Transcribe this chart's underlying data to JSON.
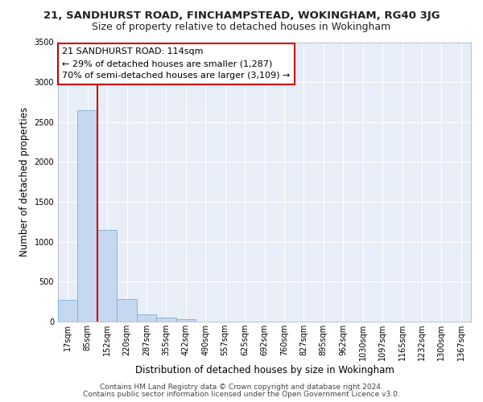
{
  "title_line1": "21, SANDHURST ROAD, FINCHAMPSTEAD, WOKINGHAM, RG40 3JG",
  "title_line2": "Size of property relative to detached houses in Wokingham",
  "xlabel": "Distribution of detached houses by size in Wokingham",
  "ylabel": "Number of detached properties",
  "bin_labels": [
    "17sqm",
    "85sqm",
    "152sqm",
    "220sqm",
    "287sqm",
    "355sqm",
    "422sqm",
    "490sqm",
    "557sqm",
    "625sqm",
    "692sqm",
    "760sqm",
    "827sqm",
    "895sqm",
    "962sqm",
    "1030sqm",
    "1097sqm",
    "1165sqm",
    "1232sqm",
    "1300sqm",
    "1367sqm"
  ],
  "bar_values": [
    270,
    2650,
    1150,
    280,
    90,
    50,
    30,
    0,
    0,
    0,
    0,
    0,
    0,
    0,
    0,
    0,
    0,
    0,
    0,
    0,
    0
  ],
  "bar_color": "#c5d8f0",
  "bar_edge_color": "#7aafd4",
  "vline_x": 1.5,
  "vline_color": "#cc0000",
  "property_label": "21 SANDHURST ROAD: 114sqm",
  "annotation_line1": "← 29% of detached houses are smaller (1,287)",
  "annotation_line2": "70% of semi-detached houses are larger (3,109) →",
  "box_color": "#ffffff",
  "box_edge_color": "#cc0000",
  "ylim": [
    0,
    3500
  ],
  "yticks": [
    0,
    500,
    1000,
    1500,
    2000,
    2500,
    3000,
    3500
  ],
  "footer_line1": "Contains HM Land Registry data © Crown copyright and database right 2024.",
  "footer_line2": "Contains public sector information licensed under the Open Government Licence v3.0.",
  "bg_color": "#e8eef8",
  "grid_color": "#ffffff",
  "title1_fontsize": 9.5,
  "title2_fontsize": 9,
  "axis_label_fontsize": 8.5,
  "tick_fontsize": 7,
  "annotation_fontsize": 8,
  "footer_fontsize": 6.5
}
